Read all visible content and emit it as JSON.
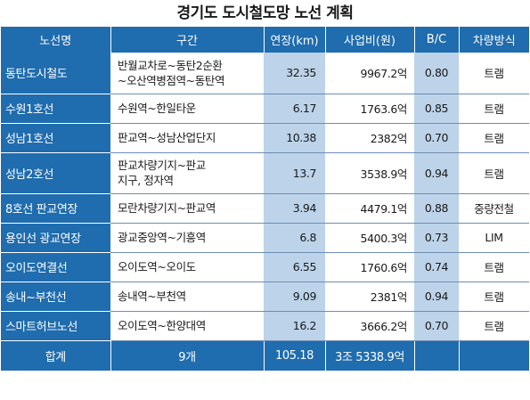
{
  "title": "경기도 도시철도망 노선 계획",
  "header": {
    "route": "노선명",
    "section": "구간",
    "length": "연장(km)",
    "cost": "사업비(원)",
    "bc": "B/C",
    "vehicle": "차량방식"
  },
  "rows": [
    {
      "name": "동탄도시철도",
      "section": [
        "반월교차로~동탄2순환",
        "~오산역병점역~동탄역"
      ],
      "length": "32.35",
      "cost": "9967.2억",
      "bc": "0.80",
      "vehicle": "트램"
    },
    {
      "name": "수원1호선",
      "section": [
        "수원역~한일타운"
      ],
      "length": "6.17",
      "cost": "1763.6억",
      "bc": "0.85",
      "vehicle": "트램"
    },
    {
      "name": "성남1호선",
      "section": [
        "판교역~성남산업단지"
      ],
      "length": "10.38",
      "cost": "2382억",
      "bc": "0.70",
      "vehicle": "트램"
    },
    {
      "name": "성남2호선",
      "section": [
        "판교차량기지~판교",
        "지구, 정자역"
      ],
      "length": "13.7",
      "cost": "3538.9억",
      "bc": "0.94",
      "vehicle": "트램"
    },
    {
      "name": "8호선 판교연장",
      "section": [
        "모란차량기지~판교역"
      ],
      "length": "3.94",
      "cost": "4479.1억",
      "bc": "0.88",
      "vehicle": "중량전철"
    },
    {
      "name": "용인선 광교연장",
      "section": [
        "광교중앙역~기흥역"
      ],
      "length": "6.8",
      "cost": "5400.3억",
      "bc": "0.73",
      "vehicle": "LIM"
    },
    {
      "name": "오이도연결선",
      "section": [
        "오이도역~오이도"
      ],
      "length": "6.55",
      "cost": "1760.6억",
      "bc": "0.74",
      "vehicle": "트램"
    },
    {
      "name": "송내~부천선",
      "section": [
        "송내역~부천역"
      ],
      "length": "9.09",
      "cost": "2381억",
      "bc": "0.94",
      "vehicle": "트램"
    },
    {
      "name": "스마트허브노선",
      "section": [
        "오이도역~한양대역"
      ],
      "length": "16.2",
      "cost": "3666.2억",
      "bc": "0.70",
      "vehicle": "트램"
    }
  ],
  "total": {
    "label": "합계",
    "section": "9개",
    "length": "105.18",
    "cost": "3조 5338.9억",
    "bc": "",
    "vehicle": ""
  }
}
